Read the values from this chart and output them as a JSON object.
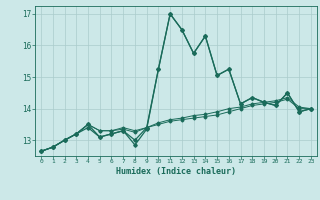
{
  "xlabel": "Humidex (Indice chaleur)",
  "background_color": "#cce8e8",
  "grid_color": "#aacccc",
  "line_color": "#1a6b5a",
  "xlim": [
    -0.5,
    23.5
  ],
  "ylim": [
    12.5,
    17.25
  ],
  "xticks": [
    0,
    1,
    2,
    3,
    4,
    5,
    6,
    7,
    8,
    9,
    10,
    11,
    12,
    13,
    14,
    15,
    16,
    17,
    18,
    19,
    20,
    21,
    22,
    23
  ],
  "yticks": [
    13,
    14,
    15,
    16,
    17
  ],
  "series1": [
    12.65,
    12.78,
    13.0,
    13.2,
    13.4,
    13.1,
    13.2,
    13.3,
    12.85,
    13.35,
    15.25,
    17.0,
    16.5,
    15.75,
    16.3,
    15.05,
    15.25,
    14.15,
    14.35,
    14.2,
    14.1,
    14.5,
    13.9,
    14.0
  ],
  "series2": [
    12.65,
    12.78,
    13.0,
    13.2,
    13.5,
    13.1,
    13.2,
    13.3,
    13.0,
    13.4,
    15.25,
    17.0,
    16.5,
    15.75,
    16.3,
    15.05,
    15.25,
    14.15,
    14.35,
    14.2,
    14.1,
    14.5,
    13.9,
    14.0
  ],
  "series3": [
    12.65,
    12.78,
    13.0,
    13.2,
    13.5,
    13.3,
    13.3,
    13.35,
    13.25,
    13.4,
    13.5,
    13.6,
    13.65,
    13.7,
    13.75,
    13.8,
    13.9,
    14.0,
    14.1,
    14.15,
    14.2,
    14.3,
    14.0,
    14.0
  ],
  "series4": [
    12.65,
    12.78,
    13.0,
    13.2,
    13.5,
    13.3,
    13.3,
    13.4,
    13.3,
    13.4,
    13.55,
    13.65,
    13.7,
    13.78,
    13.82,
    13.9,
    14.0,
    14.05,
    14.15,
    14.2,
    14.25,
    14.35,
    14.05,
    14.0
  ]
}
